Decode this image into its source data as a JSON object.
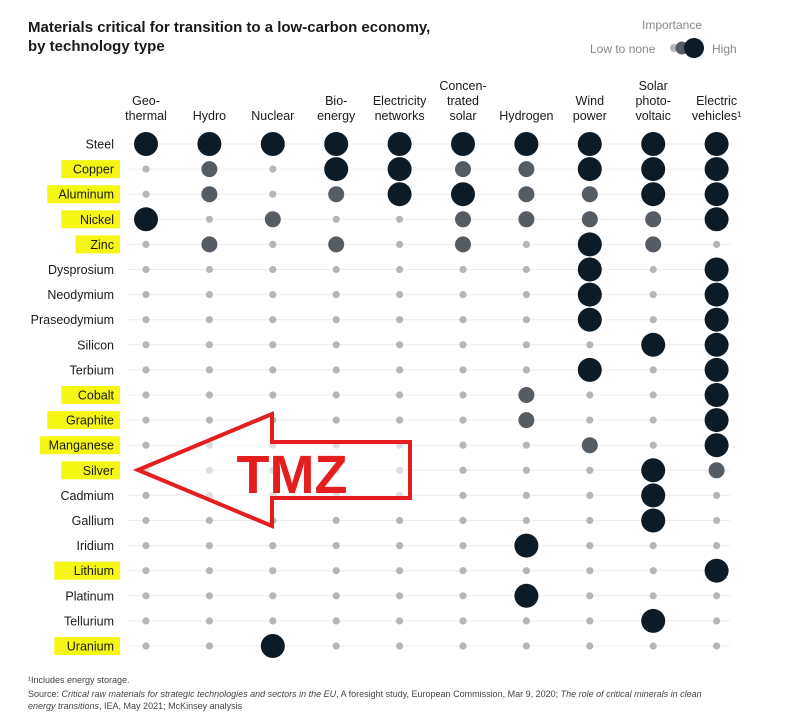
{
  "title": "Materials critical for transition to a low-carbon economy,\nby technology type",
  "legend": {
    "title": "Importance",
    "low_label": "Low to none",
    "high_label": "High"
  },
  "colors": {
    "high": "#0d1b26",
    "medium": "#555c63",
    "low": "#b6b6b6",
    "highlight": "#f5f500",
    "arrow": "#e41e1e"
  },
  "watermark": "TMZ",
  "footnote": "¹Includes energy storage.",
  "source": {
    "prefix": "Source: ",
    "italic1": "Critical raw materials for strategic technologies and sectors in the EU",
    "mid1": ", A foresight study, European Commission, Mar 9, 2020; ",
    "italic2": "The role of critical minerals in clean energy transitions",
    "mid2": ", IEA, May 2021; McKinsey analysis"
  },
  "chart_data": {
    "type": "heatmap",
    "value_scale": "0 = low to none, 1 = medium, 2 = high",
    "columns": [
      [
        "Geo-",
        "thermal"
      ],
      [
        "Hydro"
      ],
      [
        "Nuclear"
      ],
      [
        "Bio-",
        "energy"
      ],
      [
        "Electricity",
        "networks"
      ],
      [
        "Concen-",
        "trated",
        "solar"
      ],
      [
        "Hydrogen"
      ],
      [
        "Wind",
        "power"
      ],
      [
        "Solar",
        "photo-",
        "voltaic"
      ],
      [
        "Electric",
        "vehicles¹"
      ]
    ],
    "rows": [
      {
        "label": "Steel",
        "highlighted": false,
        "values": [
          2,
          2,
          2,
          2,
          2,
          2,
          2,
          2,
          2,
          2
        ]
      },
      {
        "label": "Copper",
        "highlighted": true,
        "values": [
          0,
          1,
          0,
          2,
          2,
          1,
          1,
          2,
          2,
          2
        ]
      },
      {
        "label": "Aluminum",
        "highlighted": true,
        "values": [
          0,
          1,
          0,
          1,
          2,
          2,
          1,
          1,
          2,
          2
        ]
      },
      {
        "label": "Nickel",
        "highlighted": true,
        "values": [
          2,
          0,
          1,
          0,
          0,
          1,
          1,
          1,
          1,
          2
        ]
      },
      {
        "label": "Zinc",
        "highlighted": true,
        "values": [
          0,
          1,
          0,
          1,
          0,
          1,
          0,
          2,
          1,
          0
        ]
      },
      {
        "label": "Dysprosium",
        "highlighted": false,
        "values": [
          0,
          0,
          0,
          0,
          0,
          0,
          0,
          2,
          0,
          2
        ]
      },
      {
        "label": "Neodymium",
        "highlighted": false,
        "values": [
          0,
          0,
          0,
          0,
          0,
          0,
          0,
          2,
          0,
          2
        ]
      },
      {
        "label": "Praseodymium",
        "highlighted": false,
        "values": [
          0,
          0,
          0,
          0,
          0,
          0,
          0,
          2,
          0,
          2
        ]
      },
      {
        "label": "Silicon",
        "highlighted": false,
        "values": [
          0,
          0,
          0,
          0,
          0,
          0,
          0,
          0,
          2,
          2
        ]
      },
      {
        "label": "Terbium",
        "highlighted": false,
        "values": [
          0,
          0,
          0,
          0,
          0,
          0,
          0,
          2,
          0,
          2
        ]
      },
      {
        "label": "Cobalt",
        "highlighted": true,
        "values": [
          0,
          0,
          0,
          0,
          0,
          0,
          1,
          0,
          0,
          2
        ]
      },
      {
        "label": "Graphite",
        "highlighted": true,
        "values": [
          0,
          0,
          0,
          0,
          0,
          0,
          1,
          0,
          0,
          2
        ]
      },
      {
        "label": "Manganese",
        "highlighted": true,
        "values": [
          0,
          0,
          0,
          0,
          0,
          0,
          0,
          1,
          0,
          2
        ]
      },
      {
        "label": "Silver",
        "highlighted": true,
        "values": [
          0,
          0,
          0,
          0,
          0,
          0,
          0,
          0,
          2,
          1
        ]
      },
      {
        "label": "Cadmium",
        "highlighted": false,
        "values": [
          0,
          0,
          0,
          0,
          0,
          0,
          0,
          0,
          2,
          0
        ]
      },
      {
        "label": "Gallium",
        "highlighted": false,
        "values": [
          0,
          0,
          0,
          0,
          0,
          0,
          0,
          0,
          2,
          0
        ]
      },
      {
        "label": "Iridium",
        "highlighted": false,
        "values": [
          0,
          0,
          0,
          0,
          0,
          0,
          2,
          0,
          0,
          0
        ]
      },
      {
        "label": "Lithium",
        "highlighted": true,
        "values": [
          0,
          0,
          0,
          0,
          0,
          0,
          0,
          0,
          0,
          2
        ]
      },
      {
        "label": "Platinum",
        "highlighted": false,
        "values": [
          0,
          0,
          0,
          0,
          0,
          0,
          2,
          0,
          0,
          0
        ]
      },
      {
        "label": "Tellurium",
        "highlighted": false,
        "values": [
          0,
          0,
          0,
          0,
          0,
          0,
          0,
          0,
          2,
          0
        ]
      },
      {
        "label": "Uranium",
        "highlighted": true,
        "values": [
          0,
          0,
          2,
          0,
          0,
          0,
          0,
          0,
          0,
          0
        ]
      }
    ]
  }
}
